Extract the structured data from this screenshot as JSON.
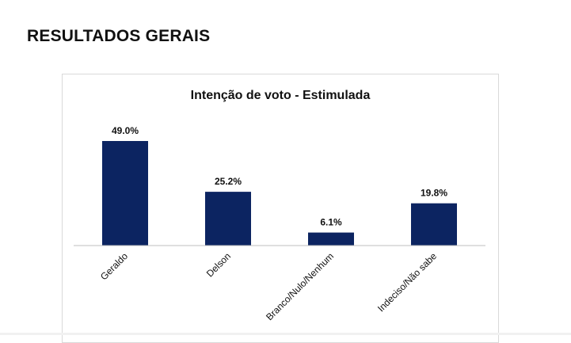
{
  "page": {
    "heading": "RESULTADOS GERAIS"
  },
  "colors": {
    "bar": "#0c2461",
    "axis": "#bfbfbf",
    "frame_border": "#d9d9d9",
    "text": "#111111"
  },
  "chart_data": {
    "type": "bar",
    "title": "Intenção de voto - Estimulada",
    "categories": [
      "Geraldo",
      "Delson",
      "Branco/Nulo/Nenhum",
      "Indeciso/Não sabe"
    ],
    "values": [
      49.0,
      25.2,
      6.1,
      19.8
    ],
    "data_labels": [
      "49.0%",
      "25.2%",
      "6.1%",
      "19.8%"
    ],
    "xlabel": "",
    "ylabel": "",
    "ylim": [
      0,
      49.0
    ],
    "grid": false,
    "legend": "none"
  }
}
